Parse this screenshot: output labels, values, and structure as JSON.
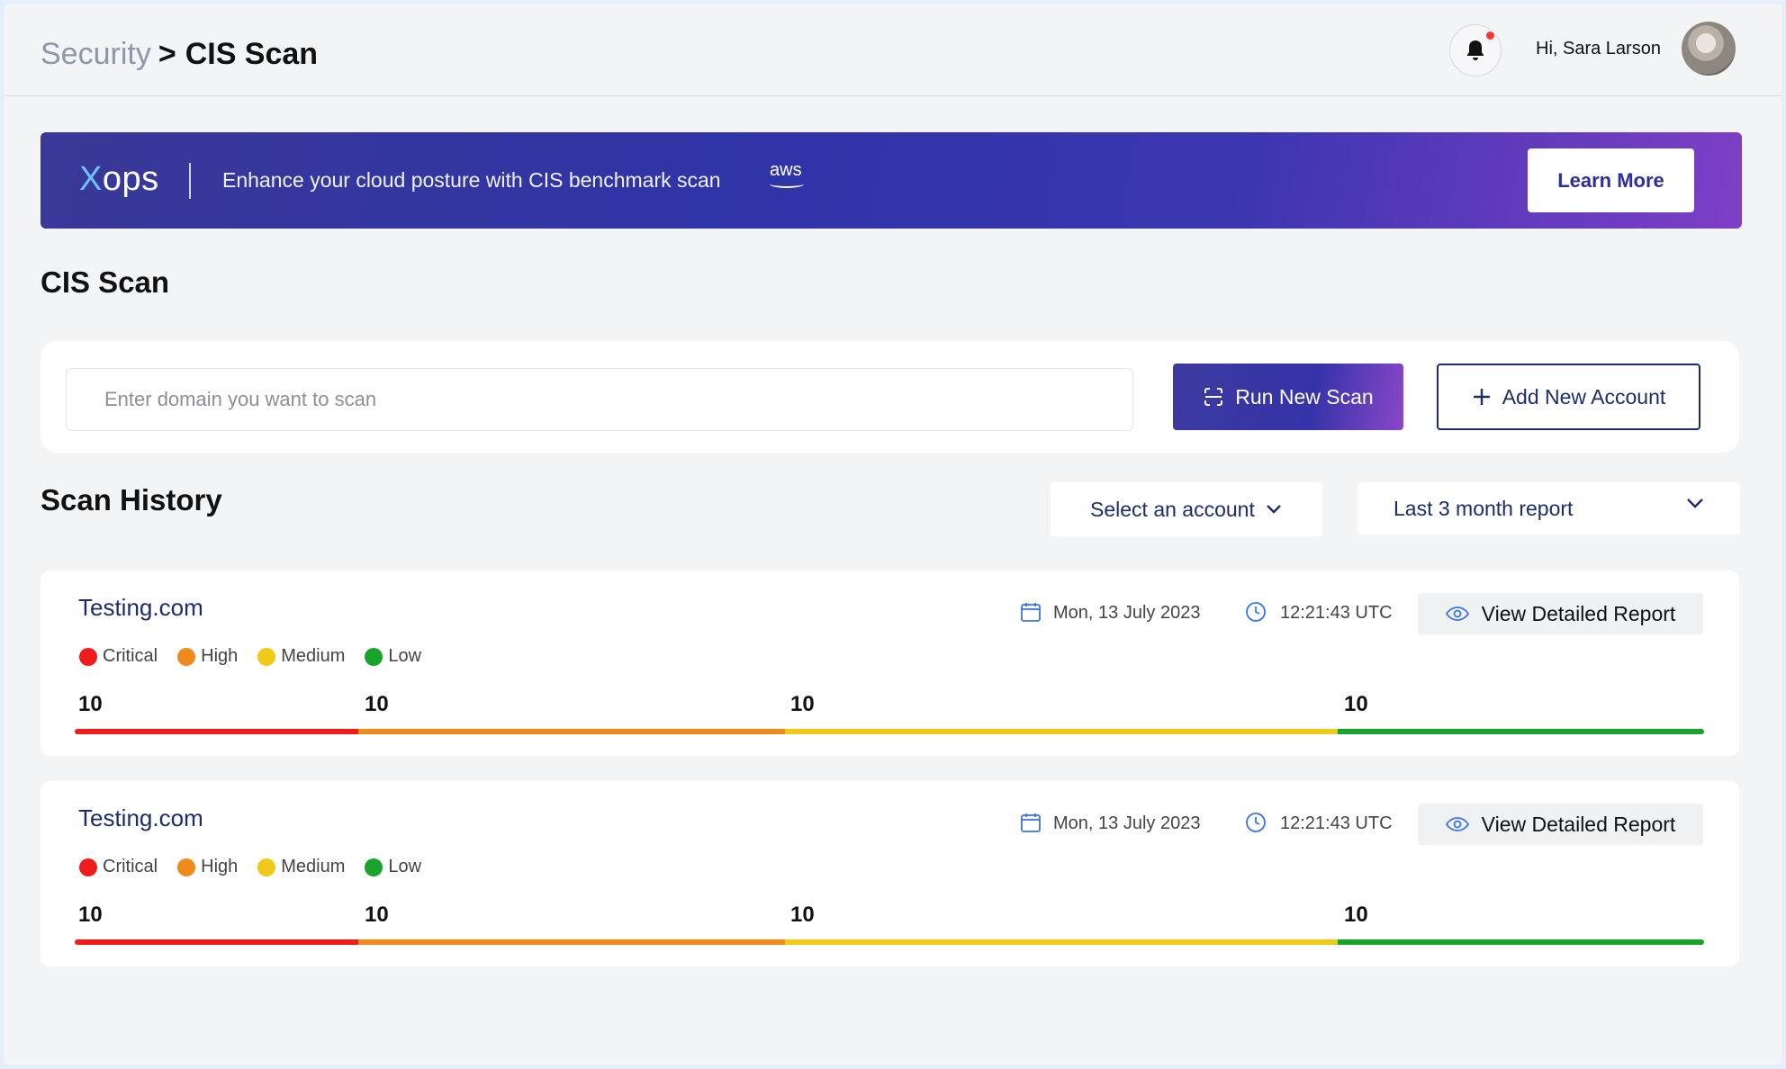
{
  "header": {
    "breadcrumb_parent": "Security",
    "breadcrumb_separator": ">",
    "breadcrumb_current": "CIS Scan",
    "greeting": "Hi, Sara Larson"
  },
  "banner": {
    "logo_x": "X",
    "logo_rest": "ops",
    "text": "Enhance your cloud posture with CIS benchmark scan",
    "aws": "aws",
    "cta": "Learn More"
  },
  "scan": {
    "title": "CIS Scan",
    "placeholder": "Enter domain you want to scan",
    "run_label": "Run New Scan",
    "add_label": "Add New Account"
  },
  "history": {
    "title": "Scan History",
    "account_select": "Select an account",
    "range_select": "Last 3 month report",
    "legend": [
      "Critical",
      "High",
      "Medium",
      "Low"
    ],
    "colors": {
      "critical": "#ef1c1c",
      "high": "#f08a1c",
      "medium": "#f1c919",
      "low": "#19a32c"
    },
    "reports": [
      {
        "domain": "Testing.com",
        "date": "Mon, 13 July  2023",
        "time": "12:21:43  UTC",
        "view_label": "View Detailed Report",
        "counts": {
          "critical": "10",
          "high": "10",
          "medium": "10",
          "low": "10"
        }
      },
      {
        "domain": "Testing.com",
        "date": "Mon, 13 July  2023",
        "time": "12:21:43  UTC",
        "view_label": "View Detailed Report",
        "counts": {
          "critical": "10",
          "high": "10",
          "medium": "10",
          "low": "10"
        }
      }
    ]
  }
}
